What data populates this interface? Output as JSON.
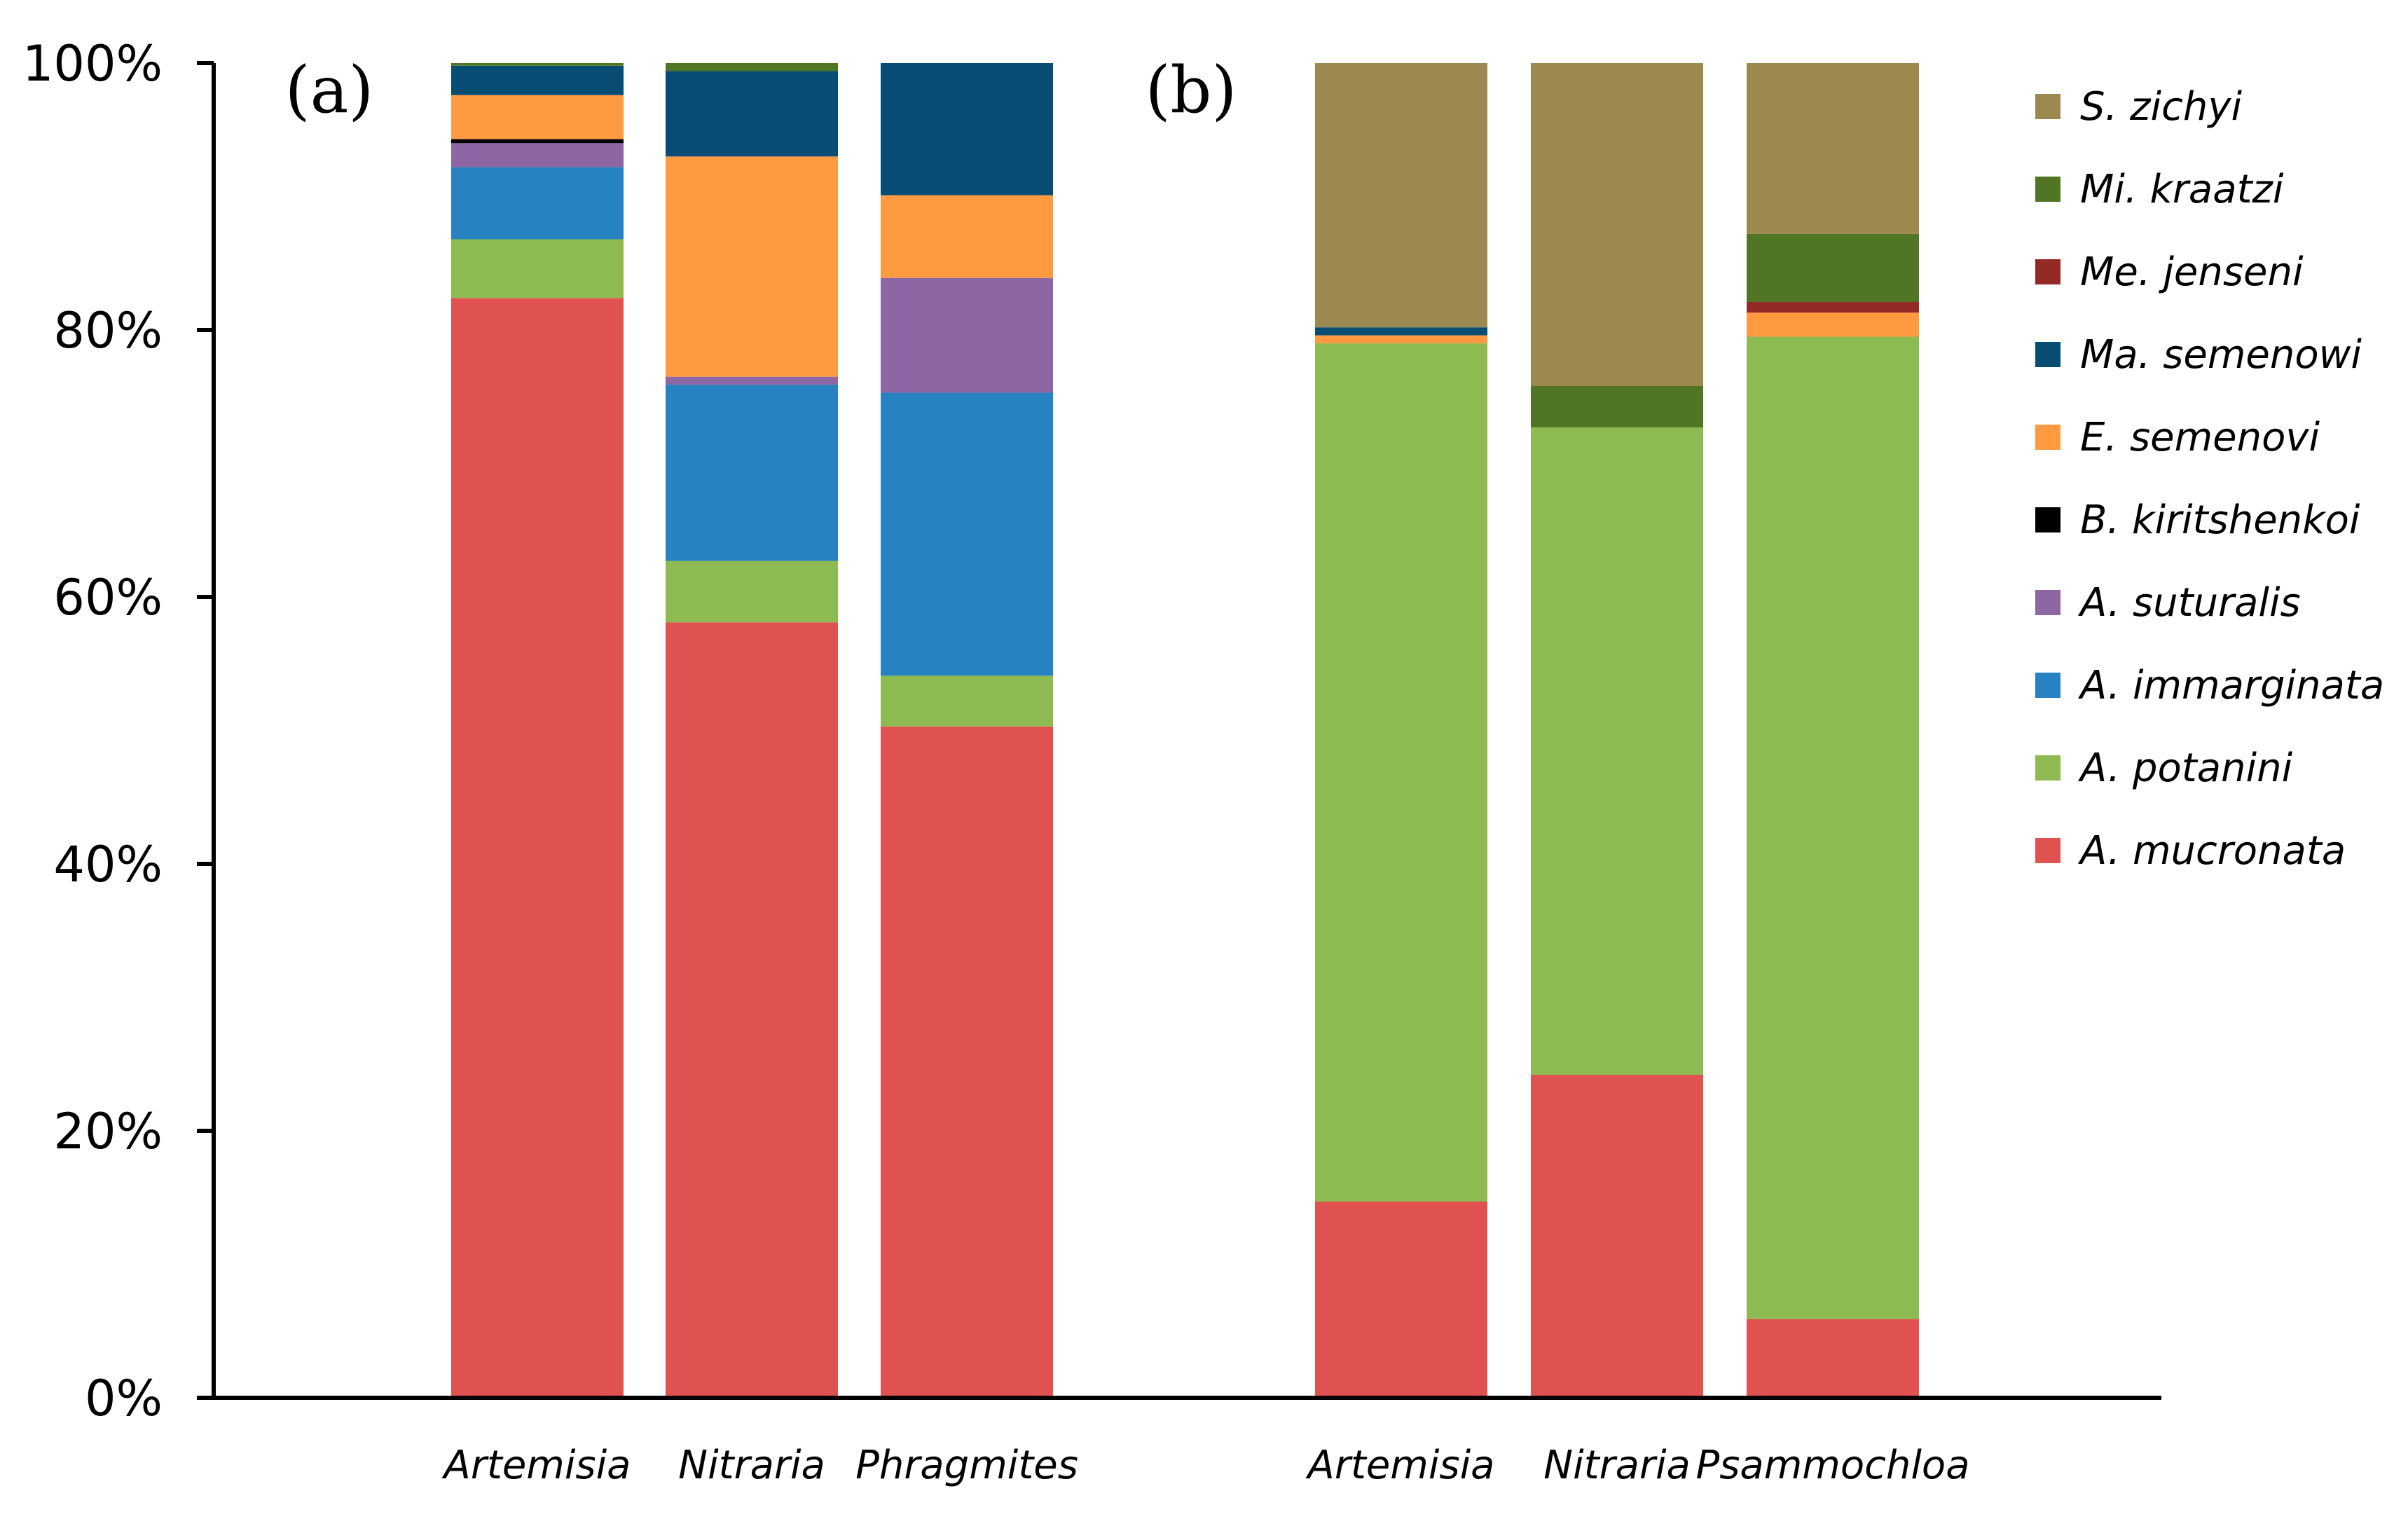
{
  "chart_data": {
    "type": "stacked-bar-100",
    "ylim": [
      0,
      100
    ],
    "yticks": [
      "0%",
      "20%",
      "40%",
      "60%",
      "80%",
      "100%"
    ],
    "ytick_values": [
      0,
      20,
      40,
      60,
      80,
      100
    ],
    "legend_position": "right",
    "species": [
      {
        "name": "A. mucronata",
        "color": "#E05250"
      },
      {
        "name": "A. potanini",
        "color": "#8EBB51"
      },
      {
        "name": "A. immarginata",
        "color": "#2782C1"
      },
      {
        "name": "A. suturalis",
        "color": "#8C67A4"
      },
      {
        "name": "B. kiritshenkoi",
        "color": "#000000"
      },
      {
        "name": "E. semenovi",
        "color": "#FF9A40"
      },
      {
        "name": "Ma. semenowi",
        "color": "#064C73"
      },
      {
        "name": "Me. jenseni",
        "color": "#942A26"
      },
      {
        "name": "Mi. kraatzi",
        "color": "#4F7525"
      },
      {
        "name": "S. zichyi",
        "color": "#9C8950"
      }
    ],
    "legend_order": [
      "S. zichyi",
      "Mi. kraatzi",
      "Me. jenseni",
      "Ma. semenowi",
      "E. semenovi",
      "B. kiritshenkoi",
      "A. suturalis",
      "A. immarginata",
      "A. potanini",
      "A. mucronata"
    ],
    "panels": [
      {
        "label": "(a)",
        "categories": [
          "Artemisia",
          "Nitraria",
          "Phragmites"
        ],
        "values": {
          "A. mucronata": [
            82.4,
            58.1,
            50.3
          ],
          "A. potanini": [
            4.4,
            4.6,
            3.8
          ],
          "A. immarginata": [
            5.4,
            13.2,
            21.2
          ],
          "A. suturalis": [
            1.8,
            0.6,
            8.6
          ],
          "B. kiritshenkoi": [
            0.3,
            0.0,
            0.0
          ],
          "E. semenovi": [
            3.3,
            16.5,
            6.2
          ],
          "Ma. semenowi": [
            2.2,
            6.4,
            9.9
          ],
          "Me. jenseni": [
            0.0,
            0.0,
            0.0
          ],
          "Mi. kraatzi": [
            0.2,
            0.6,
            0.0
          ],
          "S. zichyi": [
            0.0,
            0.0,
            0.0
          ]
        }
      },
      {
        "label": "(b)",
        "categories": [
          "Artemisia",
          "Nitraria",
          "Psammochloa"
        ],
        "values": {
          "A. mucronata": [
            14.7,
            24.2,
            5.9
          ],
          "A. potanini": [
            64.3,
            48.5,
            73.6
          ],
          "A. immarginata": [
            0.0,
            0.0,
            0.0
          ],
          "A. suturalis": [
            0.0,
            0.0,
            0.0
          ],
          "B. kiritshenkoi": [
            0.0,
            0.0,
            0.0
          ],
          "E. semenovi": [
            0.6,
            0.0,
            1.8
          ],
          "Ma. semenowi": [
            0.6,
            0.0,
            0.0
          ],
          "Me. jenseni": [
            0.0,
            0.0,
            0.8
          ],
          "Mi. kraatzi": [
            0.0,
            3.1,
            5.1
          ],
          "S. zichyi": [
            19.8,
            24.2,
            12.8
          ]
        }
      }
    ]
  }
}
